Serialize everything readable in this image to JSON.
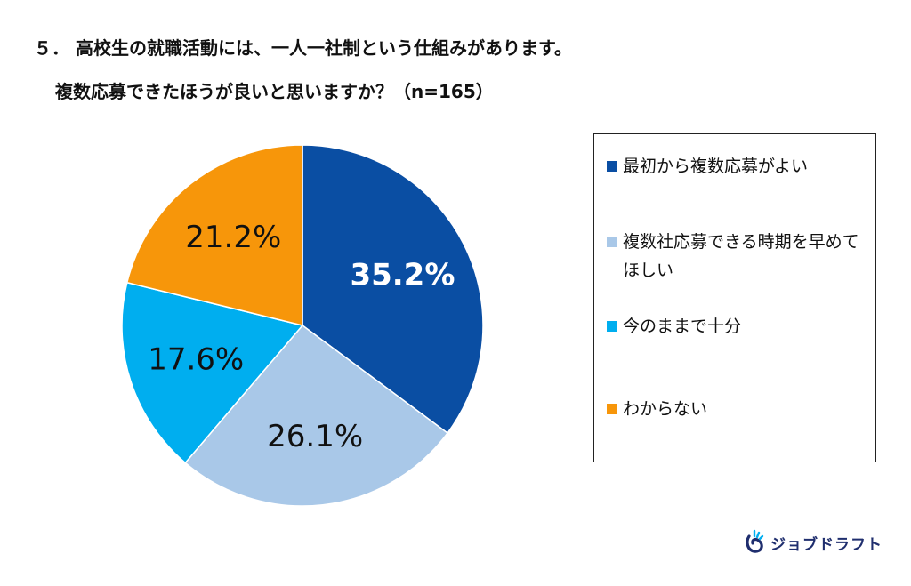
{
  "title": {
    "line1": "５． 高校生の就職活動には、一人一社制という仕組みがあります。",
    "line2": "複数応募できたほうが良いと思いますか？（n=165）"
  },
  "chart_data": {
    "type": "pie",
    "start": "12 o'clock, clockwise",
    "slices": [
      {
        "label": "最初から複数応募がよい",
        "value": 35.2,
        "display": "35.2%",
        "color": "#0a4ea3",
        "label_color": "#ffffff",
        "label_bold": true
      },
      {
        "label": "複数社応募できる時期を早めてほしい",
        "value": 26.1,
        "display": "26.1%",
        "color": "#a9c8e8",
        "label_color": "#111111",
        "label_bold": false
      },
      {
        "label": "今のままで十分",
        "value": 17.6,
        "display": "17.6%",
        "color": "#00aeef",
        "label_color": "#111111",
        "label_bold": false
      },
      {
        "label": "わからない",
        "value": 21.2,
        "display": "21.2%",
        "color": "#f7960a",
        "label_color": "#111111",
        "label_bold": false
      }
    ],
    "legend_placement": "right"
  },
  "legend": {
    "items": [
      {
        "text": "最初から複数応募がよい",
        "color": "#0a4ea3"
      },
      {
        "text": "複数社応募できる時期を早めてほしい",
        "color": "#a9c8e8"
      },
      {
        "text": "今のままで十分",
        "color": "#00aeef"
      },
      {
        "text": "わからない",
        "color": "#f7960a"
      }
    ]
  },
  "logo": {
    "text": "ジョブドラフト",
    "icon": "jobdraft-logo-icon",
    "color": "#1f2e6e"
  }
}
